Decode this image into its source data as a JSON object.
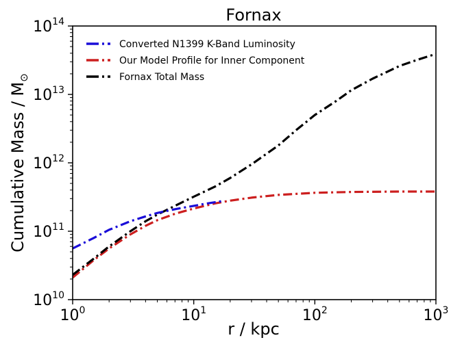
{
  "chart_data": {
    "type": "line",
    "title": "Fornax",
    "xlabel": "r / kpc",
    "ylabel": "Cumulative Mass / M",
    "ylabel_symbol": "⊙",
    "xscale": "log",
    "yscale": "log",
    "xlim": [
      1,
      1000
    ],
    "ylim": [
      10000000000,
      100000000000000
    ],
    "x_ticks": [
      {
        "value": 1,
        "base": "10",
        "exp": "0"
      },
      {
        "value": 10,
        "base": "10",
        "exp": "1"
      },
      {
        "value": 100,
        "base": "10",
        "exp": "2"
      },
      {
        "value": 1000,
        "base": "10",
        "exp": "3"
      }
    ],
    "y_ticks": [
      {
        "value": 10000000000,
        "base": "10",
        "exp": "10"
      },
      {
        "value": 100000000000,
        "base": "10",
        "exp": "11"
      },
      {
        "value": 1000000000000,
        "base": "10",
        "exp": "12"
      },
      {
        "value": 10000000000000,
        "base": "10",
        "exp": "13"
      },
      {
        "value": 100000000000000,
        "base": "10",
        "exp": "14"
      }
    ],
    "grid": false,
    "legend_position": "top-left",
    "series": [
      {
        "name": "Converted N1399 K-Band Luminosity",
        "color": "#1a0dd8",
        "dash": "dashdot",
        "x": [
          1,
          1.5,
          2,
          3,
          4,
          5,
          7,
          10,
          13,
          17
        ],
        "y": [
          56000000000,
          80000000000,
          105000000000,
          140000000000,
          165000000000,
          185000000000,
          210000000000,
          235000000000,
          255000000000,
          275000000000
        ]
      },
      {
        "name": "Our Model Profile for Inner Component",
        "color": "#cc1f1f",
        "dash": "dashdot",
        "x": [
          1,
          1.5,
          2,
          3,
          4,
          5,
          7,
          10,
          15,
          20,
          30,
          50,
          100,
          200,
          500,
          1000
        ],
        "y": [
          21000000000,
          38000000000,
          56000000000,
          90000000000,
          120000000000,
          145000000000,
          180000000000,
          215000000000,
          255000000000,
          280000000000,
          310000000000,
          340000000000,
          365000000000,
          375000000000,
          380000000000,
          380000000000
        ]
      },
      {
        "name": "Fornax Total Mass",
        "color": "#000000",
        "dash": "dashdot",
        "x": [
          1,
          1.5,
          2,
          3,
          4,
          5,
          7,
          10,
          15,
          20,
          30,
          50,
          70,
          100,
          150,
          200,
          300,
          500,
          700,
          1000
        ],
        "y": [
          23000000000,
          40000000000,
          60000000000,
          100000000000,
          140000000000,
          175000000000,
          235000000000,
          320000000000,
          450000000000,
          600000000000,
          950000000000,
          1800000000000,
          3000000000000,
          5000000000000,
          8000000000000,
          11500000000000,
          17000000000000,
          26000000000000,
          32000000000000,
          39000000000000
        ]
      }
    ]
  }
}
